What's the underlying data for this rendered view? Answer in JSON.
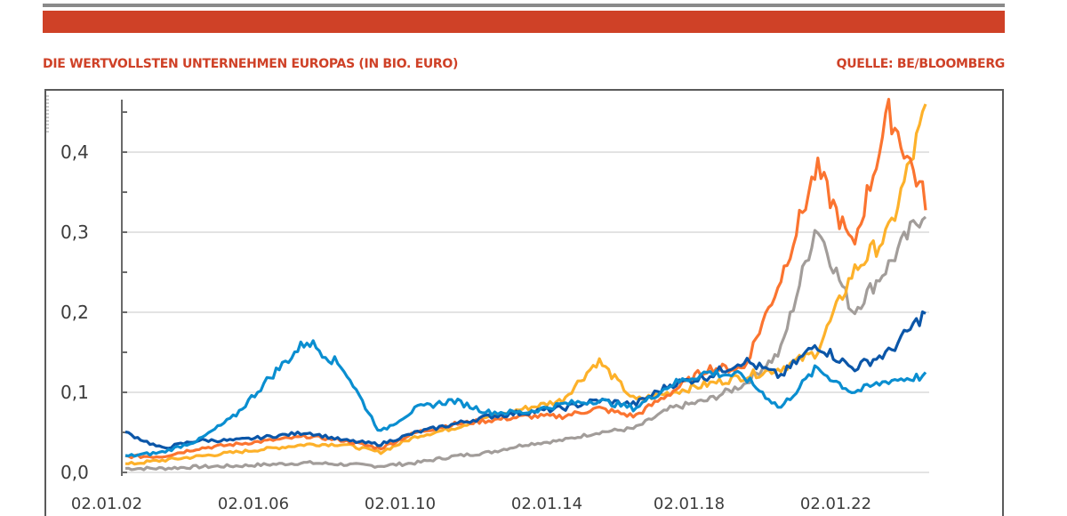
{
  "header": {
    "title": "DIE WERTVOLLSTEN UNTERNEHMEN EUROPAS (IN BIO. EURO)",
    "source": "QUELLE: BE/BLOOMBERG"
  },
  "colors": {
    "banner": "#cf4127",
    "title_text": "#cf4127",
    "series_dark_blue": "#0b56a8",
    "series_light_blue": "#0a8ed0",
    "series_orange": "#fb7430",
    "series_yellow": "#fdb12a",
    "series_gray": "#a29d9a"
  },
  "chart_data": {
    "type": "line",
    "title": "DIE WERTVOLLSTEN UNTERNEHMEN EUROPAS (IN BIO. EURO)",
    "source": "QUELLE: BE/BLOOMBERG",
    "xlabel": "",
    "ylabel": "",
    "ylim": [
      0.0,
      0.45
    ],
    "yticks": [
      "0,0",
      "0,1",
      "0,2",
      "0,3",
      "0,4"
    ],
    "xticks": [
      "02.01.02",
      "02.01.06",
      "02.01.10",
      "02.01.14",
      "02.01.18",
      "02.01.22"
    ],
    "grid": "horizontal",
    "legend": "none visible",
    "x": [
      2002,
      2003,
      2004,
      2005,
      2006,
      2007,
      2008,
      2009,
      2010,
      2011,
      2012,
      2013,
      2014,
      2015,
      2016,
      2017,
      2018,
      2019,
      2020,
      2021,
      2022,
      2023,
      2024
    ],
    "series": [
      {
        "name": "dark blue",
        "color": "#0b56a8",
        "values": [
          0.05,
          0.03,
          0.04,
          0.04,
          0.045,
          0.05,
          0.04,
          0.035,
          0.05,
          0.06,
          0.07,
          0.075,
          0.08,
          0.09,
          0.085,
          0.11,
          0.12,
          0.14,
          0.12,
          0.16,
          0.13,
          0.15,
          0.2
        ]
      },
      {
        "name": "light blue",
        "color": "#0a8ed0",
        "values": [
          0.02,
          0.025,
          0.04,
          0.07,
          0.12,
          0.165,
          0.13,
          0.05,
          0.08,
          0.09,
          0.075,
          0.075,
          0.085,
          0.09,
          0.08,
          0.11,
          0.125,
          0.12,
          0.08,
          0.13,
          0.1,
          0.115,
          0.12
        ]
      },
      {
        "name": "orange",
        "color": "#fb7430",
        "values": [
          0.02,
          0.02,
          0.03,
          0.035,
          0.04,
          0.045,
          0.04,
          0.03,
          0.05,
          0.06,
          0.065,
          0.07,
          0.07,
          0.08,
          0.07,
          0.1,
          0.13,
          0.13,
          0.24,
          0.38,
          0.28,
          0.45,
          0.34
        ]
      },
      {
        "name": "yellow",
        "color": "#fdb12a",
        "values": [
          0.01,
          0.015,
          0.02,
          0.025,
          0.03,
          0.035,
          0.035,
          0.025,
          0.045,
          0.055,
          0.07,
          0.08,
          0.09,
          0.14,
          0.09,
          0.1,
          0.11,
          0.12,
          0.13,
          0.15,
          0.25,
          0.3,
          0.45
        ]
      },
      {
        "name": "gray",
        "color": "#a29d9a",
        "values": [
          0.005,
          0.005,
          0.007,
          0.008,
          0.01,
          0.012,
          0.01,
          0.008,
          0.012,
          0.02,
          0.025,
          0.035,
          0.04,
          0.05,
          0.055,
          0.08,
          0.09,
          0.11,
          0.15,
          0.31,
          0.2,
          0.26,
          0.33
        ]
      }
    ]
  }
}
